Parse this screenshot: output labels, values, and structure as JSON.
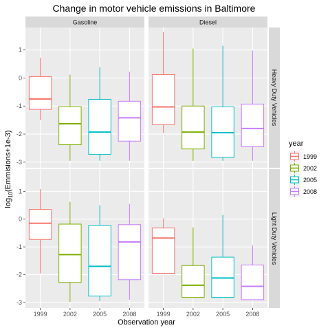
{
  "chart_data": {
    "type": "boxplot",
    "title": "Change in motor vehicle emissions in Baltimore",
    "xlabel": "Observation year",
    "ylabel_main": "log",
    "ylabel_sub": "10",
    "ylabel_rest": "(Emmisions+1e-3)",
    "categories": [
      "1999",
      "2002",
      "2005",
      "2008"
    ],
    "ylim": [
      -3.2,
      1.8
    ],
    "yticks": [
      -3,
      -2,
      -1,
      0,
      1
    ],
    "columns": [
      "Gasoline",
      "Diesel"
    ],
    "rows": [
      "Heavy Duty Vehicles",
      "Light Duty Vehicles"
    ],
    "legend": {
      "title": "year",
      "placement": "right",
      "entries": [
        "1999",
        "2002",
        "2005",
        "2008"
      ]
    },
    "colors": [
      "#F8766D",
      "#7CAE00",
      "#00BFC4",
      "#C77CFF"
    ],
    "panels": [
      {
        "row": "Heavy Duty Vehicles",
        "col": "Gasoline",
        "boxes": [
          {
            "year": "1999",
            "min": -1.5,
            "q1": -1.12,
            "median": -0.75,
            "q3": 0.05,
            "max": 0.72
          },
          {
            "year": "2002",
            "min": -2.95,
            "q1": -2.38,
            "median": -1.63,
            "q3": -1.02,
            "max": 0.12
          },
          {
            "year": "2005",
            "min": -2.95,
            "q1": -2.72,
            "median": -1.93,
            "q3": -0.76,
            "max": 0.38
          },
          {
            "year": "2008",
            "min": -2.95,
            "q1": -2.25,
            "median": -1.42,
            "q3": -0.83,
            "max": 0.22
          }
        ]
      },
      {
        "row": "Heavy Duty Vehicles",
        "col": "Diesel",
        "boxes": [
          {
            "year": "1999",
            "min": -1.95,
            "q1": -1.66,
            "median": -1.03,
            "q3": 0.12,
            "max": 1.64
          },
          {
            "year": "2002",
            "min": -2.95,
            "q1": -2.53,
            "median": -1.93,
            "q3": -1.0,
            "max": 1.05
          },
          {
            "year": "2005",
            "min": -2.95,
            "q1": -2.83,
            "median": -1.95,
            "q3": -1.03,
            "max": 1.15
          },
          {
            "year": "2008",
            "min": -2.95,
            "q1": -2.45,
            "median": -1.8,
            "q3": -0.93,
            "max": 0.98
          }
        ]
      },
      {
        "row": "Light Duty Vehicles",
        "col": "Gasoline",
        "boxes": [
          {
            "year": "1999",
            "min": -1.95,
            "q1": -0.73,
            "median": -0.15,
            "q3": 0.35,
            "max": 1.08
          },
          {
            "year": "2002",
            "min": -2.98,
            "q1": -2.28,
            "median": -1.28,
            "q3": -0.18,
            "max": 0.62
          },
          {
            "year": "2005",
            "min": -2.95,
            "q1": -2.77,
            "median": -1.7,
            "q3": -0.23,
            "max": 0.5
          },
          {
            "year": "2008",
            "min": -2.9,
            "q1": -2.18,
            "median": -0.82,
            "q3": -0.2,
            "max": 0.55
          }
        ]
      },
      {
        "row": "Light Duty Vehicles",
        "col": "Diesel",
        "boxes": [
          {
            "year": "1999",
            "min": -1.95,
            "q1": -1.95,
            "median": -0.68,
            "q3": -0.32,
            "max": 0.03
          },
          {
            "year": "2002",
            "min": -2.82,
            "q1": -2.82,
            "median": -2.38,
            "q3": -1.67,
            "max": -0.3
          },
          {
            "year": "2005",
            "min": -2.82,
            "q1": -2.82,
            "median": -2.12,
            "q3": -1.37,
            "max": 0.15
          },
          {
            "year": "2008",
            "min": -2.9,
            "q1": -2.9,
            "median": -2.42,
            "q3": -1.65,
            "max": -0.95
          }
        ]
      }
    ]
  }
}
